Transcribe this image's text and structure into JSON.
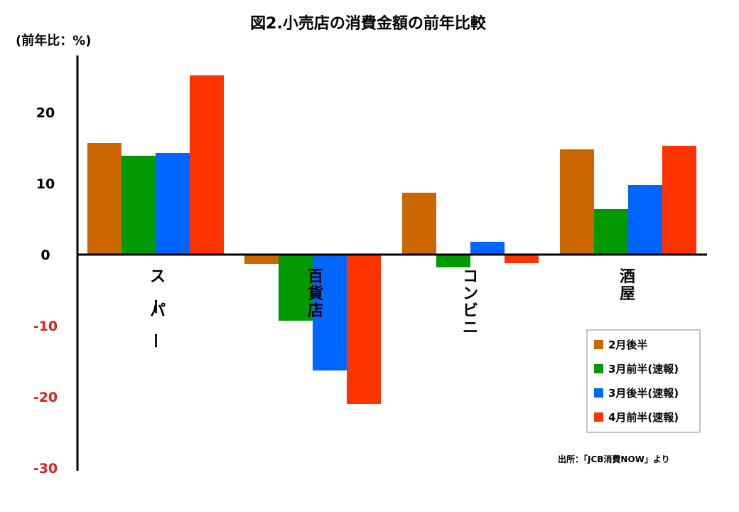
{
  "chart_data": {
    "type": "bar",
    "title": "図2.小売店の消費金額の前年比較",
    "ylabel": "(前年比：%)",
    "ylim": [
      -30,
      30
    ],
    "yticks": [
      {
        "value": 20,
        "label": "20"
      },
      {
        "value": 10,
        "label": "10"
      },
      {
        "value": 0,
        "label": "0"
      },
      {
        "value": -10,
        "label": "-10"
      },
      {
        "value": -20,
        "label": "-20"
      },
      {
        "value": -30,
        "label": "-30"
      }
    ],
    "categories": [
      "スーパー",
      "百貨店",
      "コンビニ",
      "酒屋"
    ],
    "series": [
      {
        "name": "2月後半",
        "color": "#cc6600",
        "values": [
          15.7,
          -1.3,
          8.7,
          14.8
        ]
      },
      {
        "name": "3月前半(速報)",
        "color": "#009900",
        "values": [
          13.9,
          -9.3,
          -1.8,
          6.4
        ]
      },
      {
        "name": "3月後半(速報)",
        "color": "#0066ff",
        "values": [
          14.3,
          -16.3,
          1.8,
          9.8
        ]
      },
      {
        "name": "4月前半(速報)",
        "color": "#ff3300",
        "values": [
          25.2,
          -21.0,
          -1.2,
          15.3
        ]
      }
    ],
    "negative_tick_color": "#dd2222",
    "legend_position": "bottom-right",
    "grid": false,
    "source": "出所：「JCB消費NOW」より"
  }
}
